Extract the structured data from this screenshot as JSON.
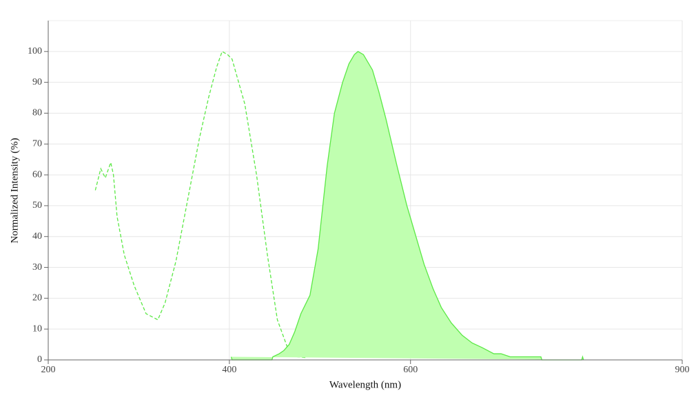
{
  "chart_data": {
    "type": "line",
    "x_label": "Wavelength (nm)",
    "y_label": "Normalized Intensity (%)",
    "xlim": [
      200,
      900
    ],
    "xticks": [
      200,
      400,
      600,
      900
    ],
    "ylim": [
      0,
      110
    ],
    "yticks": [
      0,
      10,
      20,
      30,
      40,
      50,
      60,
      70,
      80,
      90,
      100
    ],
    "grid": true,
    "series": [
      {
        "color": "#5be845",
        "dashed": true,
        "filled": false,
        "x": [
          252,
          258,
          263,
          269,
          272,
          276,
          284,
          295,
          308,
          321,
          329,
          341,
          354,
          367,
          377,
          386,
          392,
          398,
          403,
          417,
          430,
          442,
          453,
          465,
          475,
          486
        ],
        "values": [
          55,
          62,
          59,
          64,
          60,
          46.5,
          34,
          24,
          15,
          13,
          18.5,
          32,
          52,
          72,
          85,
          95,
          100,
          99,
          97.5,
          83,
          60,
          34,
          13,
          3.3,
          1,
          0.7
        ]
      },
      {
        "color": "#5be845",
        "fill_color": "#c0ffb0",
        "dashed": false,
        "filled": true,
        "x": [
          402,
          403,
          447,
          448,
          455,
          460,
          466,
          472,
          479,
          489,
          498,
          508,
          516,
          525,
          532,
          538,
          542,
          548,
          558,
          565,
          573,
          585,
          596,
          606,
          615,
          625,
          634,
          645,
          657,
          668,
          679,
          692,
          700,
          710,
          744,
          745,
          789,
          790,
          791
        ],
        "values": [
          1,
          0,
          0,
          1,
          2,
          3,
          5,
          9,
          15,
          21,
          36,
          63,
          80,
          90,
          96,
          99,
          100,
          99,
          94,
          87,
          78,
          63,
          50,
          40,
          31,
          23,
          17,
          12,
          8,
          5.5,
          4,
          2,
          2,
          1,
          1,
          0,
          0,
          1,
          0
        ]
      }
    ]
  }
}
